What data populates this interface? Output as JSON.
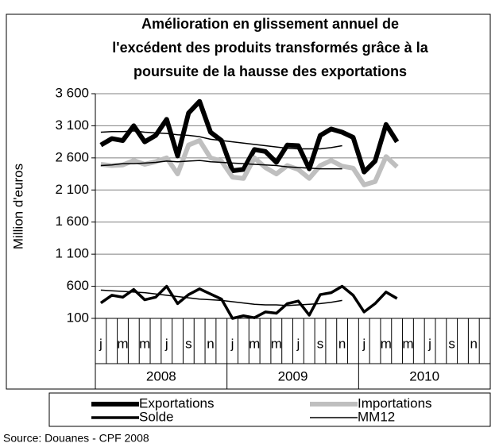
{
  "chart_data": {
    "type": "line",
    "title": [
      "Amélioration en glissement annuel de",
      "l'excédent des produits transformés grâce à la",
      "poursuite de la hausse des exportations"
    ],
    "ylabel": "Million d'euros",
    "source": "Source: Douanes - CPF 2008",
    "categories": [
      "j",
      null,
      "m",
      null,
      "m",
      null,
      "j",
      null,
      "s",
      null,
      "n",
      null,
      "j",
      null,
      "m",
      null,
      "m",
      null,
      "j",
      null,
      "s",
      null,
      "n",
      null,
      "j",
      null,
      "m",
      null,
      "m",
      null,
      "j",
      null,
      "s",
      null,
      "n",
      null
    ],
    "years": [
      "2008",
      "2009",
      "2010"
    ],
    "ylim": [
      100,
      3600
    ],
    "yticks": [
      {
        "value": 3600,
        "label": "3 600"
      },
      {
        "value": 3100,
        "label": "3 100"
      },
      {
        "value": 2600,
        "label": "2 600"
      },
      {
        "value": 2100,
        "label": "2 100"
      },
      {
        "value": 1600,
        "label": "1 600"
      },
      {
        "value": 1100,
        "label": "1 100"
      },
      600,
      100
    ],
    "grid": true,
    "series": [
      {
        "name": "Exportations",
        "color": "#000000",
        "width": 6,
        "values": [
          2800,
          2900,
          2870,
          3100,
          2850,
          2950,
          3200,
          2630,
          3300,
          3480,
          3000,
          2870,
          2400,
          2420,
          2730,
          2700,
          2530,
          2800,
          2790,
          2430,
          2950,
          3050,
          3000,
          2920,
          2380,
          2550,
          3120,
          2850,
          null,
          null,
          null,
          null,
          null,
          null,
          null,
          null
        ]
      },
      {
        "name": "Importations",
        "color": "#bfbfbf",
        "width": 6,
        "values": [
          2500,
          2480,
          2490,
          2560,
          2500,
          2540,
          2600,
          2350,
          2800,
          2870,
          2600,
          2550,
          2300,
          2280,
          2600,
          2450,
          2350,
          2480,
          2420,
          2280,
          2480,
          2560,
          2470,
          2440,
          2180,
          2230,
          2620,
          2460,
          null,
          null,
          null,
          null,
          null,
          null,
          null,
          null
        ]
      },
      {
        "name": "Solde",
        "color": "#000000",
        "width": 3.5,
        "values": [
          340,
          460,
          430,
          550,
          390,
          430,
          600,
          330,
          470,
          560,
          480,
          400,
          100,
          140,
          110,
          200,
          180,
          330,
          370,
          150,
          470,
          500,
          600,
          460,
          200,
          330,
          510,
          410,
          null,
          null,
          null,
          null,
          null,
          null,
          null,
          null
        ]
      },
      {
        "name": "MM12",
        "color": "#000000",
        "width": 1.5,
        "values": [
          3000,
          3010,
          3010,
          3020,
          3000,
          2990,
          2980,
          2960,
          2950,
          2930,
          2890,
          2870,
          2850,
          2830,
          2810,
          2790,
          2770,
          2750,
          2740,
          2740,
          2740,
          2760,
          2790,
          null,
          null,
          null,
          null,
          null,
          null,
          null,
          null,
          null,
          null,
          null,
          null,
          null
        ]
      },
      {
        "name": "MM12",
        "color": "#000000",
        "width": 1.5,
        "values": [
          2480,
          2490,
          2510,
          2510,
          2520,
          2530,
          2550,
          2540,
          2550,
          2560,
          2540,
          2530,
          2520,
          2510,
          2500,
          2490,
          2480,
          2460,
          2450,
          2440,
          2430,
          2430,
          2430,
          null,
          null,
          null,
          null,
          null,
          null,
          null,
          null,
          null,
          null,
          null,
          null,
          null
        ]
      },
      {
        "name": "MM12",
        "color": "#000000",
        "width": 1.5,
        "values": [
          540,
          530,
          520,
          510,
          500,
          480,
          460,
          440,
          420,
          400,
          390,
          380,
          360,
          340,
          320,
          310,
          310,
          300,
          310,
          320,
          330,
          350,
          380,
          null,
          null,
          null,
          null,
          null,
          null,
          null,
          null,
          null,
          null,
          null,
          null,
          null
        ]
      }
    ]
  }
}
